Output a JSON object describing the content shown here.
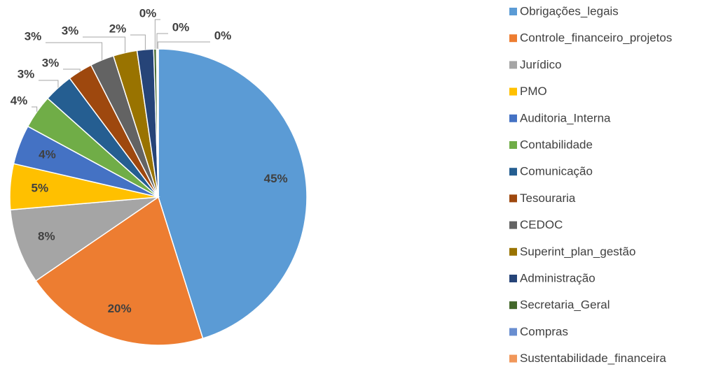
{
  "chart_data": {
    "type": "pie",
    "categories": [
      "Obrigações_legais",
      "Controle_financeiro_projetos",
      "Jurídico",
      "PMO",
      "Auditoria_Interna",
      "Contabilidade",
      "Comunicação",
      "Tesouraria",
      "CEDOC",
      "Superint_plan_gestão",
      "Administração",
      "Secretaria_Geral",
      "Compras",
      "Sustentabilidade_financeira"
    ],
    "values": [
      45.2,
      20.3,
      8.2,
      5.0,
      4.3,
      3.7,
      3.2,
      2.7,
      2.6,
      2.6,
      1.8,
      0.3,
      0.1,
      0.1
    ],
    "value_labels": [
      "45%",
      "20%",
      "8%",
      "5%",
      "4%",
      "4%",
      "3%",
      "3%",
      "3%",
      "3%",
      "2%",
      "0%",
      "0%",
      "0%"
    ],
    "colors": [
      "#5b9bd5",
      "#ed7d31",
      "#a5a5a5",
      "#ffc000",
      "#4472c4",
      "#70ad47",
      "#255e91",
      "#9e480e",
      "#636363",
      "#997300",
      "#264478",
      "#43682b",
      "#698ed0",
      "#f1975a"
    ],
    "legend": "right"
  }
}
